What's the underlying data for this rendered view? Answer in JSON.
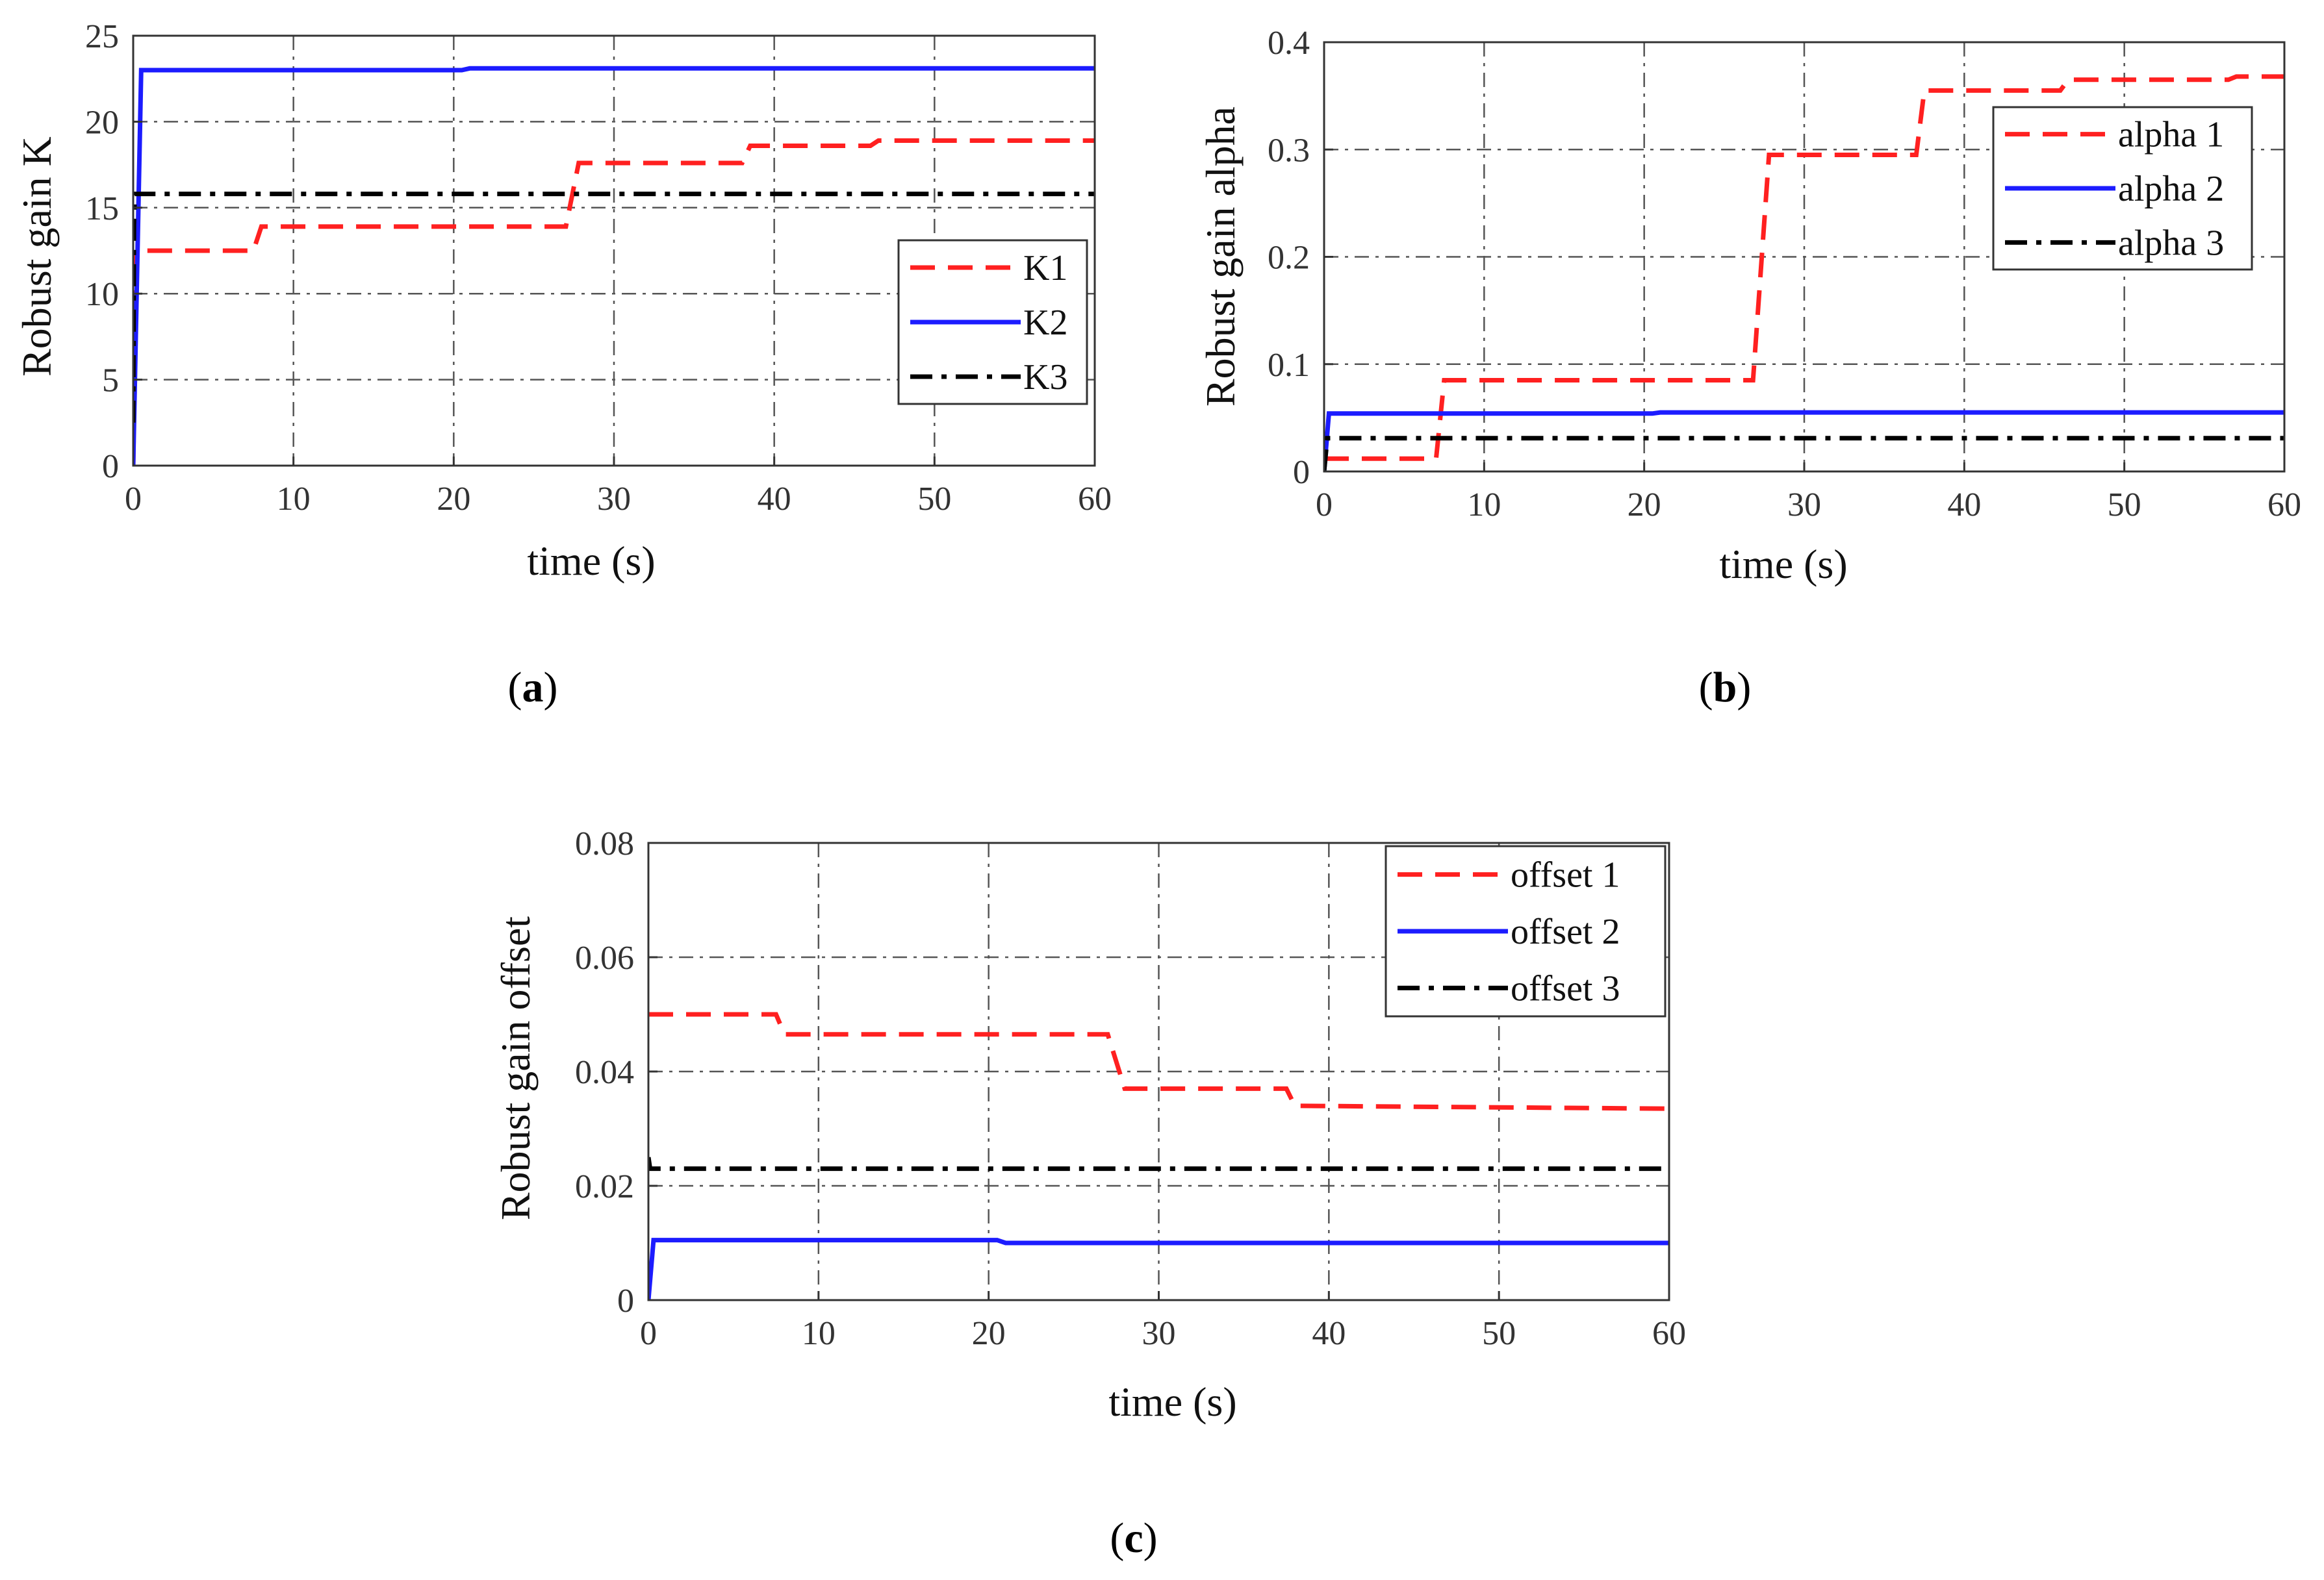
{
  "chart_data": [
    {
      "type": "line",
      "panel": "a",
      "caption_letter": "a",
      "xlabel": "time (s)",
      "ylabel": "Robust gain K",
      "xlim": [
        0,
        60
      ],
      "ylim": [
        0,
        25
      ],
      "xticks": [
        0,
        10,
        20,
        30,
        40,
        50,
        60
      ],
      "yticks": [
        0,
        5,
        10,
        15,
        20,
        25
      ],
      "grid": true,
      "legend_position": "right-middle",
      "series": [
        {
          "name": "K1",
          "color": "#ff2020",
          "style": "dashed",
          "x": [
            0,
            0.2,
            7.5,
            8.0,
            27.0,
            27.8,
            38.0,
            38.5,
            46.0,
            46.5,
            60
          ],
          "y": [
            0,
            12.5,
            12.5,
            13.9,
            13.9,
            17.6,
            17.6,
            18.6,
            18.6,
            18.9,
            18.9
          ]
        },
        {
          "name": "K2",
          "color": "#1c1cff",
          "style": "solid",
          "x": [
            0,
            0.5,
            20.5,
            21.0,
            60
          ],
          "y": [
            0,
            23.0,
            23.0,
            23.1,
            23.1
          ]
        },
        {
          "name": "K3",
          "color": "#000000",
          "style": "dashdot",
          "x": [
            0,
            0.05,
            0.1,
            0.2,
            60
          ],
          "y": [
            2.5,
            14.0,
            15.8,
            15.8,
            15.8
          ]
        }
      ]
    },
    {
      "type": "line",
      "panel": "b",
      "caption_letter": "b",
      "xlabel": "time (s)",
      "ylabel": "Robust gain alpha",
      "xlim": [
        0,
        60
      ],
      "ylim": [
        0,
        0.4
      ],
      "xticks": [
        0,
        10,
        20,
        30,
        40,
        50,
        60
      ],
      "yticks": [
        0,
        0.1,
        0.2,
        0.3,
        0.4
      ],
      "grid": true,
      "legend_position": "top-right",
      "series": [
        {
          "name": "alpha 1",
          "color": "#ff2020",
          "style": "dashed",
          "x": [
            0,
            7.0,
            7.5,
            26.8,
            27.8,
            37.0,
            37.5,
            46.0,
            46.5,
            56.5,
            57.0,
            60
          ],
          "y": [
            0.012,
            0.012,
            0.085,
            0.085,
            0.295,
            0.295,
            0.355,
            0.355,
            0.365,
            0.365,
            0.368,
            0.368
          ]
        },
        {
          "name": "alpha 2",
          "color": "#1c1cff",
          "style": "solid",
          "x": [
            0,
            0.3,
            20.5,
            21.0,
            60
          ],
          "y": [
            0,
            0.054,
            0.054,
            0.055,
            0.055
          ]
        },
        {
          "name": "alpha 3",
          "color": "#000000",
          "style": "dashdot",
          "x": [
            0,
            0.2,
            60
          ],
          "y": [
            0,
            0.031,
            0.031
          ]
        }
      ]
    },
    {
      "type": "line",
      "panel": "c",
      "caption_letter": "c",
      "xlabel": "time (s)",
      "ylabel": "Robust gain offset",
      "xlim": [
        0,
        60
      ],
      "ylim": [
        0,
        0.08
      ],
      "xticks": [
        0,
        10,
        20,
        30,
        40,
        50,
        60
      ],
      "yticks": [
        0,
        0.02,
        0.04,
        0.06,
        0.08
      ],
      "grid": true,
      "legend_position": "top-right",
      "series": [
        {
          "name": "offset 1",
          "color": "#ff2020",
          "style": "dashed",
          "x": [
            0,
            7.5,
            8.0,
            27.0,
            28.0,
            37.5,
            38.0,
            60
          ],
          "y": [
            0.05,
            0.05,
            0.0465,
            0.0465,
            0.037,
            0.037,
            0.034,
            0.0335
          ]
        },
        {
          "name": "offset 2",
          "color": "#1c1cff",
          "style": "solid",
          "x": [
            0,
            0.3,
            20.5,
            21.0,
            60
          ],
          "y": [
            0,
            0.0105,
            0.0105,
            0.01,
            0.01
          ]
        },
        {
          "name": "offset 3",
          "color": "#000000",
          "style": "dashdot",
          "x": [
            0,
            0.1,
            60
          ],
          "y": [
            0.025,
            0.023,
            0.023
          ]
        }
      ]
    }
  ]
}
